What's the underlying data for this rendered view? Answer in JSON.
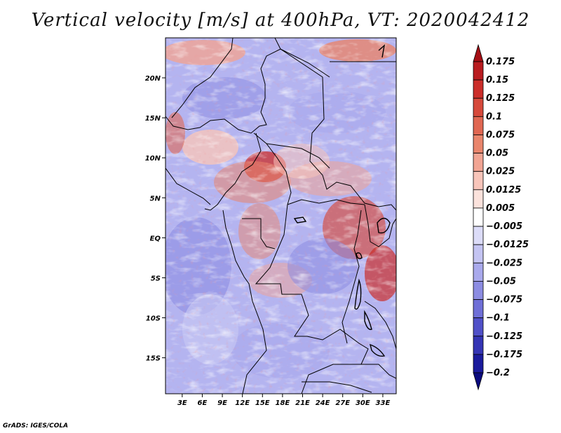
{
  "title": "Vertical velocity [m/s] at 400hPa, VT: 2020042412",
  "footer": "GrADS: IGES/COLA",
  "map": {
    "lat_labels": [
      "20N",
      "15N",
      "10N",
      "5N",
      "EQ",
      "5S",
      "10S",
      "15S"
    ],
    "lat_values": [
      20,
      15,
      10,
      5,
      0,
      -5,
      -10,
      -15
    ],
    "lon_labels": [
      "3E",
      "6E",
      "9E",
      "12E",
      "15E",
      "18E",
      "21E",
      "24E",
      "27E",
      "30E",
      "33E"
    ],
    "lon_values": [
      3,
      6,
      9,
      12,
      15,
      18,
      21,
      24,
      27,
      30,
      33
    ],
    "lon_range": [
      0.5,
      35
    ],
    "lat_range": [
      -19.5,
      25
    ]
  },
  "colorbar": {
    "labels": [
      "0.175",
      "0.15",
      "0.125",
      "0.1",
      "0.075",
      "0.05",
      "0.025",
      "0.0125",
      "0.005",
      "-0.005",
      "-0.0125",
      "-0.025",
      "-0.05",
      "-0.075",
      "-0.1",
      "-0.125",
      "-0.175",
      "-0.2"
    ],
    "colors": [
      "#a50f15",
      "#b91c20",
      "#cb2e2a",
      "#d6493b",
      "#e06752",
      "#e9856c",
      "#f1a493",
      "#f8c5ba",
      "#fbe2dc",
      "#ffffff",
      "#dcdcf8",
      "#c4c4f2",
      "#a9a9ec",
      "#8c8ce2",
      "#6f6fd7",
      "#5050c8",
      "#3434b4",
      "#1a1a9c",
      "#0a0a7e"
    ]
  }
}
